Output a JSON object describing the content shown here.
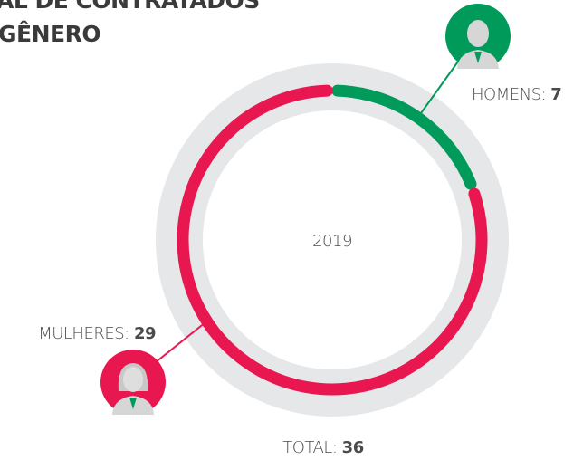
{
  "chart_data": {
    "type": "donut",
    "title": [
      "AL DE CONTRATADOS",
      "GÊNERO"
    ],
    "center_label": "2019",
    "series": [
      {
        "name": "HOMENS:",
        "color": "#009a5b",
        "value": 7
      },
      {
        "name": "MULHERES:",
        "color": "#e8174f",
        "value": 29
      }
    ],
    "total_label": "TOTAL:",
    "total": 36
  }
}
